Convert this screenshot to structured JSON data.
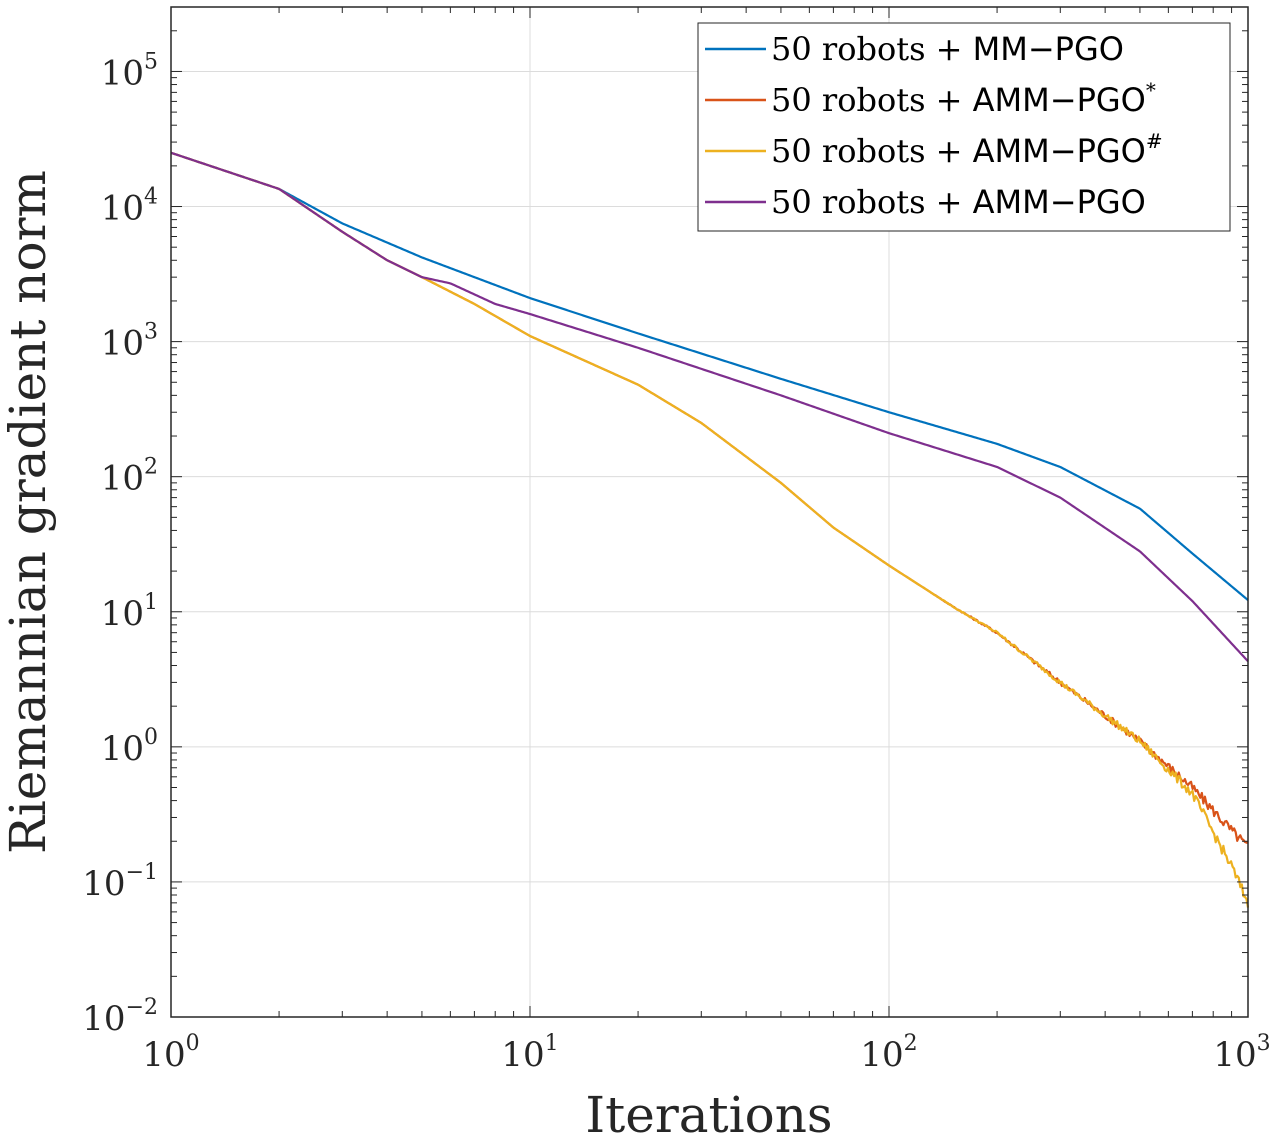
{
  "chart_data": {
    "type": "line",
    "title": "",
    "xlabel": "Iterations",
    "ylabel": "Riemannian gradient norm",
    "xscale": "log",
    "yscale": "log",
    "xlim": [
      1,
      1000
    ],
    "ylim": [
      0.01,
      300000
    ],
    "grid": true,
    "legend_position": "top-right",
    "x_ticks": [
      {
        "value": 1,
        "base": "10",
        "exp": "0"
      },
      {
        "value": 10,
        "base": "10",
        "exp": "1"
      },
      {
        "value": 100,
        "base": "10",
        "exp": "2"
      },
      {
        "value": 1000,
        "base": "10",
        "exp": "3"
      }
    ],
    "y_ticks": [
      {
        "value": 0.01,
        "base": "10",
        "exp": "−2"
      },
      {
        "value": 0.1,
        "base": "10",
        "exp": "−1"
      },
      {
        "value": 1,
        "base": "10",
        "exp": "0"
      },
      {
        "value": 10,
        "base": "10",
        "exp": "1"
      },
      {
        "value": 100,
        "base": "10",
        "exp": "2"
      },
      {
        "value": 1000,
        "base": "10",
        "exp": "3"
      },
      {
        "value": 10000,
        "base": "10",
        "exp": "4"
      },
      {
        "value": 100000,
        "base": "10",
        "exp": "5"
      }
    ],
    "series": [
      {
        "name": "MM-PGO",
        "legend_prefix": "50 robots + ",
        "legend_method": "MM−PGO",
        "legend_sup": "",
        "color": "#0072BD",
        "noise": 0,
        "points": [
          [
            1,
            25000
          ],
          [
            2,
            13500
          ],
          [
            3,
            7500
          ],
          [
            5,
            4200
          ],
          [
            10,
            2100
          ],
          [
            20,
            1150
          ],
          [
            50,
            530
          ],
          [
            100,
            300
          ],
          [
            200,
            175
          ],
          [
            300,
            118
          ],
          [
            500,
            58
          ],
          [
            700,
            27
          ],
          [
            1000,
            12.2
          ]
        ]
      },
      {
        "name": "AMM-PGO*",
        "legend_prefix": "50 robots + ",
        "legend_method": "AMM−PGO",
        "legend_sup": "*",
        "color": "#D95319",
        "noise": 0.035,
        "points": [
          [
            1,
            25000
          ],
          [
            2,
            13500
          ],
          [
            3,
            6500
          ],
          [
            4,
            4000
          ],
          [
            5,
            3000
          ],
          [
            7,
            1900
          ],
          [
            10,
            1100
          ],
          [
            20,
            480
          ],
          [
            30,
            250
          ],
          [
            50,
            90
          ],
          [
            70,
            42
          ],
          [
            100,
            22
          ],
          [
            150,
            11
          ],
          [
            200,
            7
          ],
          [
            300,
            3
          ],
          [
            500,
            1.1
          ],
          [
            700,
            0.5
          ],
          [
            900,
            0.24
          ],
          [
            1000,
            0.18
          ]
        ]
      },
      {
        "name": "AMM-PGO#",
        "legend_prefix": "50 robots + ",
        "legend_method": "AMM−PGO",
        "legend_sup": "#",
        "color": "#EDB120",
        "noise": 0.035,
        "points": [
          [
            1,
            25000
          ],
          [
            2,
            13500
          ],
          [
            3,
            6500
          ],
          [
            4,
            4000
          ],
          [
            5,
            3000
          ],
          [
            7,
            1900
          ],
          [
            10,
            1100
          ],
          [
            20,
            480
          ],
          [
            30,
            250
          ],
          [
            50,
            90
          ],
          [
            70,
            42
          ],
          [
            100,
            22
          ],
          [
            150,
            11
          ],
          [
            200,
            7
          ],
          [
            300,
            3
          ],
          [
            500,
            1.1
          ],
          [
            700,
            0.45
          ],
          [
            900,
            0.13
          ],
          [
            1000,
            0.07
          ]
        ]
      },
      {
        "name": "AMM-PGO",
        "legend_prefix": "50 robots + ",
        "legend_method": "AMM−PGO",
        "legend_sup": "",
        "color": "#7E2F8E",
        "noise": 0,
        "points": [
          [
            1,
            25000
          ],
          [
            2,
            13500
          ],
          [
            3,
            6500
          ],
          [
            4,
            4000
          ],
          [
            5,
            3000
          ],
          [
            6,
            2700
          ],
          [
            8,
            1900
          ],
          [
            10,
            1600
          ],
          [
            20,
            900
          ],
          [
            50,
            400
          ],
          [
            100,
            210
          ],
          [
            200,
            118
          ],
          [
            300,
            70
          ],
          [
            500,
            28
          ],
          [
            700,
            12
          ],
          [
            1000,
            4.3
          ]
        ]
      }
    ]
  }
}
